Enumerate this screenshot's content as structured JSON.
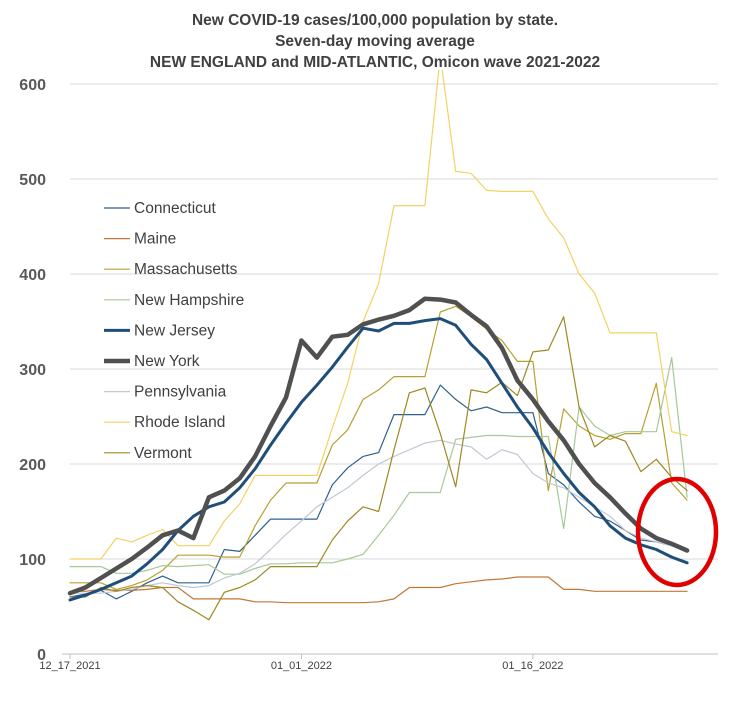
{
  "chart_data": {
    "type": "line",
    "title": "New COVID-19 cases/100,000 population by state.",
    "subtitle": "Seven-day moving average",
    "subtitle2": "NEW ENGLAND and MID-ATLANTIC, Omicon wave 2021-2022",
    "xlabel": "",
    "ylabel": "",
    "ylim": [
      0,
      600
    ],
    "yticks": [
      0,
      100,
      200,
      300,
      400,
      500,
      600
    ],
    "grid": "horizontal",
    "legend_position": "left",
    "x_tick_labels": [
      "12_17_2021",
      "01_01_2022",
      "01_16_2022"
    ],
    "x_tick_days": [
      0,
      15,
      30
    ],
    "x_start_date": "2021-12-17",
    "x": [
      0,
      1,
      2,
      3,
      4,
      5,
      6,
      7,
      8,
      9,
      10,
      11,
      12,
      13,
      14,
      15,
      16,
      17,
      18,
      19,
      20,
      21,
      22,
      23,
      24,
      25,
      26,
      27,
      28,
      29,
      30,
      31,
      32,
      33,
      34,
      35,
      36,
      37,
      38,
      39,
      40
    ],
    "series": [
      {
        "name": "Connecticut",
        "color": "#2e6090",
        "width": 1.2,
        "values": [
          60,
          63,
          67,
          58,
          66,
          75,
          82,
          75,
          75,
          75,
          110,
          108,
          125,
          142,
          142,
          142,
          142,
          178,
          196,
          208,
          212,
          252,
          252,
          252,
          283,
          268,
          256,
          260,
          254,
          254,
          254,
          190,
          178,
          160,
          145,
          140,
          130,
          120,
          118,
          114,
          108
        ]
      },
      {
        "name": "Maine",
        "color": "#c07838",
        "width": 1.2,
        "values": [
          66,
          66,
          68,
          67,
          67,
          68,
          70,
          70,
          58,
          58,
          58,
          58,
          55,
          55,
          54,
          54,
          54,
          54,
          54,
          54,
          55,
          58,
          70,
          70,
          70,
          74,
          76,
          78,
          79,
          81,
          81,
          81,
          68,
          68,
          66,
          66,
          66,
          66,
          66,
          66,
          66
        ]
      },
      {
        "name": "Massachusetts",
        "color": "#b8a030",
        "width": 1.2,
        "values": [
          75,
          75,
          75,
          68,
          72,
          78,
          88,
          104,
          104,
          104,
          102,
          102,
          135,
          162,
          180,
          180,
          180,
          220,
          236,
          268,
          278,
          292,
          292,
          292,
          360,
          366,
          355,
          342,
          330,
          308,
          308,
          172,
          258,
          240,
          230,
          226,
          232,
          232,
          285,
          180,
          162
        ]
      },
      {
        "name": "New Hampshire",
        "color": "#a8c898",
        "width": 1.2,
        "values": [
          92,
          92,
          92,
          85,
          85,
          88,
          93,
          92,
          93,
          94,
          84,
          84,
          90,
          95,
          95,
          96,
          96,
          96,
          100,
          105,
          125,
          146,
          170,
          170,
          170,
          226,
          228,
          230,
          230,
          229,
          229,
          229,
          132,
          260,
          240,
          230,
          234,
          234,
          234,
          312,
          165
        ]
      },
      {
        "name": "New Jersey",
        "color": "#1f4e79",
        "width": 3,
        "values": [
          57,
          62,
          68,
          75,
          82,
          95,
          110,
          130,
          145,
          155,
          160,
          175,
          195,
          220,
          243,
          265,
          283,
          302,
          323,
          343,
          340,
          348,
          348,
          351,
          353,
          346,
          326,
          310,
          285,
          260,
          238,
          212,
          190,
          170,
          155,
          135,
          122,
          115,
          110,
          102,
          96
        ]
      },
      {
        "name": "New York",
        "color": "#505050",
        "width": 4.5,
        "values": [
          64,
          70,
          80,
          90,
          100,
          112,
          125,
          130,
          122,
          165,
          172,
          185,
          208,
          240,
          270,
          330,
          312,
          334,
          336,
          347,
          352,
          356,
          362,
          374,
          373,
          370,
          357,
          345,
          322,
          288,
          268,
          245,
          225,
          200,
          180,
          165,
          148,
          132,
          122,
          116,
          109
        ]
      },
      {
        "name": "Pennsylvania",
        "color": "#c0c8d4",
        "width": 1.2,
        "values": [
          64,
          64,
          64,
          66,
          68,
          72,
          75,
          72,
          70,
          72,
          80,
          85,
          95,
          110,
          126,
          140,
          155,
          165,
          175,
          188,
          200,
          208,
          215,
          222,
          225,
          221,
          218,
          205,
          215,
          210,
          190,
          180,
          175,
          165,
          155,
          145,
          130,
          122,
          118,
          114,
          110
        ]
      },
      {
        "name": "Rhode Island",
        "color": "#f2d264",
        "width": 1.2,
        "values": [
          100,
          100,
          100,
          122,
          118,
          125,
          131,
          114,
          114,
          114,
          140,
          158,
          188,
          188,
          188,
          188,
          188,
          238,
          285,
          350,
          390,
          472,
          472,
          472,
          630,
          508,
          506,
          488,
          487,
          487,
          487,
          458,
          438,
          400,
          380,
          338,
          338,
          338,
          338,
          234,
          230
        ]
      },
      {
        "name": "Vermont",
        "color": "#9c8a24",
        "width": 1.2,
        "values": [
          60,
          60,
          70,
          66,
          70,
          72,
          70,
          55,
          46,
          36,
          65,
          70,
          78,
          92,
          92,
          92,
          92,
          120,
          140,
          155,
          150,
          215,
          275,
          280,
          232,
          176,
          278,
          275,
          286,
          272,
          318,
          320,
          355,
          260,
          218,
          230,
          224,
          192,
          205,
          186,
          172
        ]
      }
    ]
  },
  "annotation": {
    "shape": "ellipse",
    "color": "#e00000"
  }
}
